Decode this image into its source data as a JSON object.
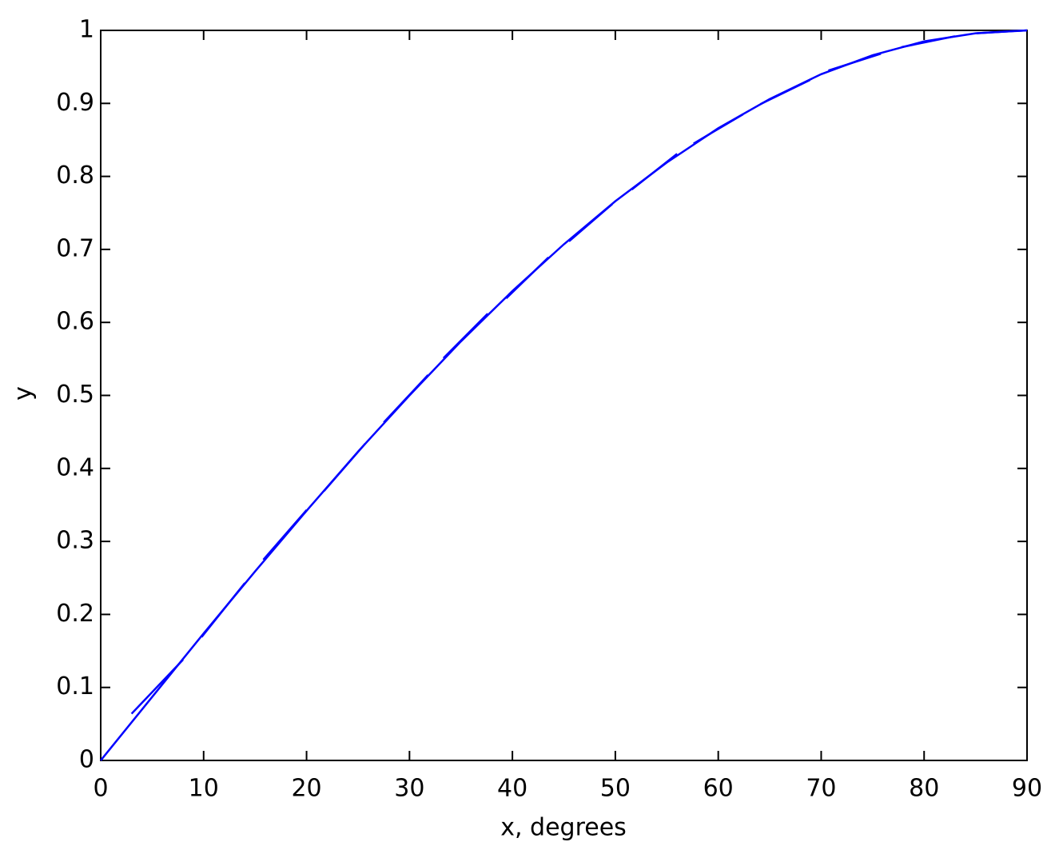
{
  "chart_data": {
    "type": "line",
    "x_label": "x, degrees",
    "y_label": "y",
    "xlim": [
      0,
      90
    ],
    "ylim": [
      0,
      1
    ],
    "xticks": [
      0,
      10,
      20,
      30,
      40,
      50,
      60,
      70,
      80,
      90
    ],
    "yticks": [
      0,
      0.1,
      0.2,
      0.3,
      0.4,
      0.5,
      0.6,
      0.7,
      0.8,
      0.9,
      1
    ],
    "grid": false,
    "series": [
      {
        "color": "#0000ff",
        "x": [
          0,
          5,
          10,
          15,
          20,
          25,
          30,
          35,
          40,
          45,
          50,
          55,
          60,
          65,
          70,
          75,
          80,
          85,
          90
        ],
        "values": [
          0,
          0.087,
          0.174,
          0.259,
          0.342,
          0.423,
          0.5,
          0.574,
          0.643,
          0.707,
          0.766,
          0.819,
          0.866,
          0.906,
          0.94,
          0.966,
          0.985,
          0.996,
          1
        ]
      },
      {
        "color": "#0000ff",
        "x": [
          3.0,
          8.0,
          null,
          9.8,
          14.0,
          null,
          15.8,
          20.0,
          null,
          21.7,
          25.7,
          null,
          27.5,
          31.8,
          null,
          33.3,
          37.6,
          null,
          39.4,
          43.5,
          null,
          45.5,
          49.7,
          null,
          51.6,
          56.0,
          null,
          57.6,
          62.4,
          null,
          64.1,
          68.9,
          null,
          70.7,
          75.8,
          null,
          77.8,
          83.0,
          null,
          85.1,
          90.0
        ],
        "values": [
          0.064,
          0.138,
          null,
          0.169,
          0.243,
          null,
          0.275,
          0.343,
          null,
          0.369,
          0.434,
          null,
          0.463,
          0.528,
          null,
          0.551,
          0.612,
          null,
          0.633,
          0.689,
          null,
          0.711,
          0.762,
          null,
          0.782,
          0.831,
          null,
          0.845,
          0.885,
          null,
          0.899,
          0.932,
          null,
          0.945,
          0.968,
          null,
          0.977,
          0.992,
          null,
          0.996,
          1.0
        ]
      }
    ]
  }
}
